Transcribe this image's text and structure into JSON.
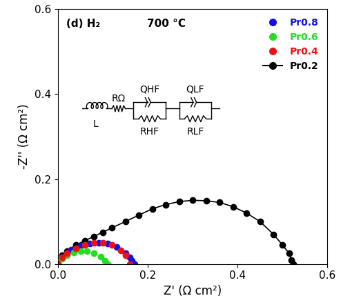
{
  "chart_data": {
    "type": "scatter",
    "x_label": "Z' (Ω cm²)",
    "y_label": "-Z'' (Ω cm²)",
    "annotations": [
      "(d) H₂",
      "700 °C"
    ],
    "circuit": [
      "L",
      "RΩ",
      "QHF",
      "RHF",
      "QLF",
      "RLF"
    ],
    "xlim": [
      0.0,
      0.6
    ],
    "ylim": [
      0.0,
      0.6
    ],
    "xticks": [
      0.0,
      0.2,
      0.4,
      0.6
    ],
    "yticks": [
      0.0,
      0.2,
      0.4,
      0.6
    ],
    "legend": "upper right",
    "series": [
      {
        "name": "Pr0.2",
        "color": "#000000",
        "marker": "o",
        "line_style": "solid",
        "x": [
          0,
          0.01,
          0.02,
          0.04,
          0.06,
          0.08,
          0.1,
          0.12,
          0.15,
          0.18,
          0.21,
          0.24,
          0.27,
          0.3,
          0.33,
          0.36,
          0.39,
          0.42,
          0.45,
          0.48,
          0.5,
          0.515,
          0.52,
          0.525
        ],
        "values": [
          0,
          0.02,
          0.03,
          0.045,
          0.055,
          0.065,
          0.075,
          0.085,
          0.1,
          0.115,
          0.13,
          0.14,
          0.147,
          0.15,
          0.149,
          0.145,
          0.135,
          0.12,
          0.1,
          0.07,
          0.045,
          0.025,
          0.01,
          0
        ]
      },
      {
        "name": "Pr0.8",
        "color": "#1010ee",
        "marker": "o",
        "line_style": "none",
        "x": [
          0,
          0.01,
          0.02,
          0.03,
          0.05,
          0.07,
          0.09,
          0.11,
          0.13,
          0.15,
          0.16,
          0.165,
          0.17
        ],
        "values": [
          0,
          0.015,
          0.025,
          0.033,
          0.043,
          0.048,
          0.05,
          0.048,
          0.04,
          0.025,
          0.015,
          0.008,
          0
        ]
      },
      {
        "name": "Pr0.6",
        "color": "#22dd22",
        "marker": "o",
        "line_style": "none",
        "x": [
          0,
          0.01,
          0.02,
          0.035,
          0.05,
          0.065,
          0.08,
          0.095,
          0.105,
          0.11
        ],
        "values": [
          0,
          0.012,
          0.02,
          0.027,
          0.03,
          0.03,
          0.026,
          0.018,
          0.008,
          0
        ]
      },
      {
        "name": "Pr0.4",
        "color": "#ee1111",
        "marker": "o",
        "line_style": "none",
        "x": [
          0,
          0.01,
          0.02,
          0.04,
          0.06,
          0.08,
          0.1,
          0.12,
          0.14,
          0.15,
          0.16
        ],
        "values": [
          0,
          0.015,
          0.025,
          0.037,
          0.045,
          0.05,
          0.05,
          0.045,
          0.032,
          0.02,
          0
        ]
      }
    ]
  }
}
